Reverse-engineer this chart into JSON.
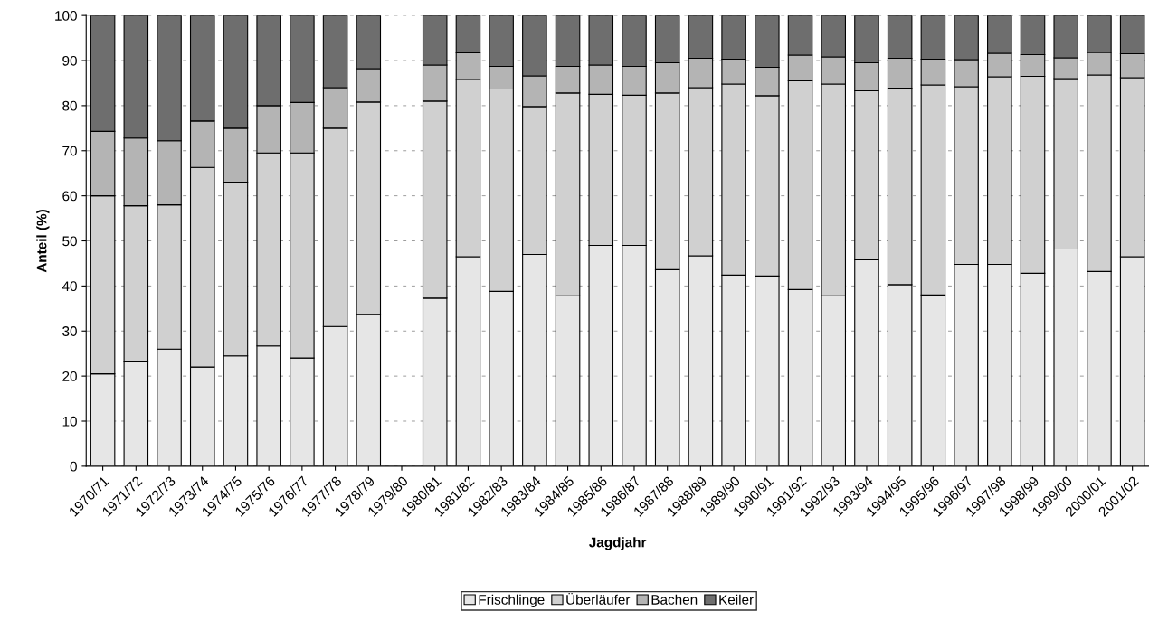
{
  "chart_data": {
    "type": "bar",
    "stacked": true,
    "xlabel": "Jagdjahr",
    "ylabel": "Anteil (%)",
    "categories": [
      "1970/71",
      "1971/72",
      "1972/73",
      "1973/74",
      "1974/75",
      "1975/76",
      "1976/77",
      "1977/78",
      "1978/79",
      "1979/80",
      "1980/81",
      "1981/82",
      "1982/83",
      "1983/84",
      "1984/85",
      "1985/86",
      "1986/87",
      "1987/88",
      "1988/89",
      "1989/90",
      "1990/91",
      "1991/92",
      "1992/93",
      "1993/94",
      "1994/95",
      "1995/96",
      "1996/97",
      "1997/98",
      "1998/99",
      "1999/00",
      "2000/01",
      "2001/02"
    ],
    "series": [
      {
        "name": "Frischlinge",
        "color": "#e6e6e6",
        "values": [
          20.5,
          23.3,
          26.0,
          22.0,
          24.5,
          26.7,
          24.0,
          31.0,
          33.7,
          null,
          37.3,
          46.5,
          38.8,
          47.0,
          37.8,
          49.0,
          49.0,
          43.6,
          46.7,
          42.4,
          42.2,
          39.2,
          37.8,
          45.8,
          40.3,
          38.0,
          44.8,
          44.8,
          42.8,
          48.2,
          43.2,
          46.5
        ]
      },
      {
        "name": "Überläufer",
        "color": "#d0d0d0",
        "values": [
          39.5,
          34.5,
          32.0,
          44.3,
          38.5,
          42.8,
          45.5,
          44.0,
          47.1,
          null,
          43.7,
          39.3,
          44.9,
          32.8,
          45.0,
          33.5,
          33.3,
          39.2,
          37.3,
          42.4,
          40.0,
          46.3,
          47.0,
          37.5,
          43.6,
          46.6,
          39.4,
          41.6,
          43.7,
          37.8,
          43.6,
          39.7
        ]
      },
      {
        "name": "Bachen",
        "color": "#b4b4b4",
        "values": [
          14.3,
          15.0,
          14.2,
          10.3,
          12.0,
          10.5,
          11.2,
          9.0,
          7.4,
          null,
          8.0,
          5.9,
          5.0,
          6.8,
          5.9,
          6.5,
          6.4,
          6.7,
          6.5,
          5.5,
          6.3,
          5.7,
          6.0,
          6.2,
          6.6,
          5.7,
          6.0,
          5.2,
          4.8,
          4.6,
          5.0,
          5.3
        ]
      },
      {
        "name": "Keiler",
        "color": "#6e6e6e",
        "values": [
          25.7,
          27.2,
          27.8,
          23.4,
          25.0,
          20.0,
          19.3,
          16.0,
          11.8,
          null,
          11.0,
          8.3,
          11.3,
          13.4,
          11.3,
          11.0,
          11.3,
          10.5,
          9.5,
          9.7,
          11.5,
          8.8,
          9.2,
          10.5,
          9.5,
          9.7,
          9.8,
          8.4,
          8.7,
          9.4,
          8.2,
          8.5
        ]
      }
    ],
    "ylim": [
      0,
      100
    ],
    "yticks": [
      0,
      10,
      20,
      30,
      40,
      50,
      60,
      70,
      80,
      90,
      100
    ],
    "grid": "y",
    "legend": "bottom"
  }
}
